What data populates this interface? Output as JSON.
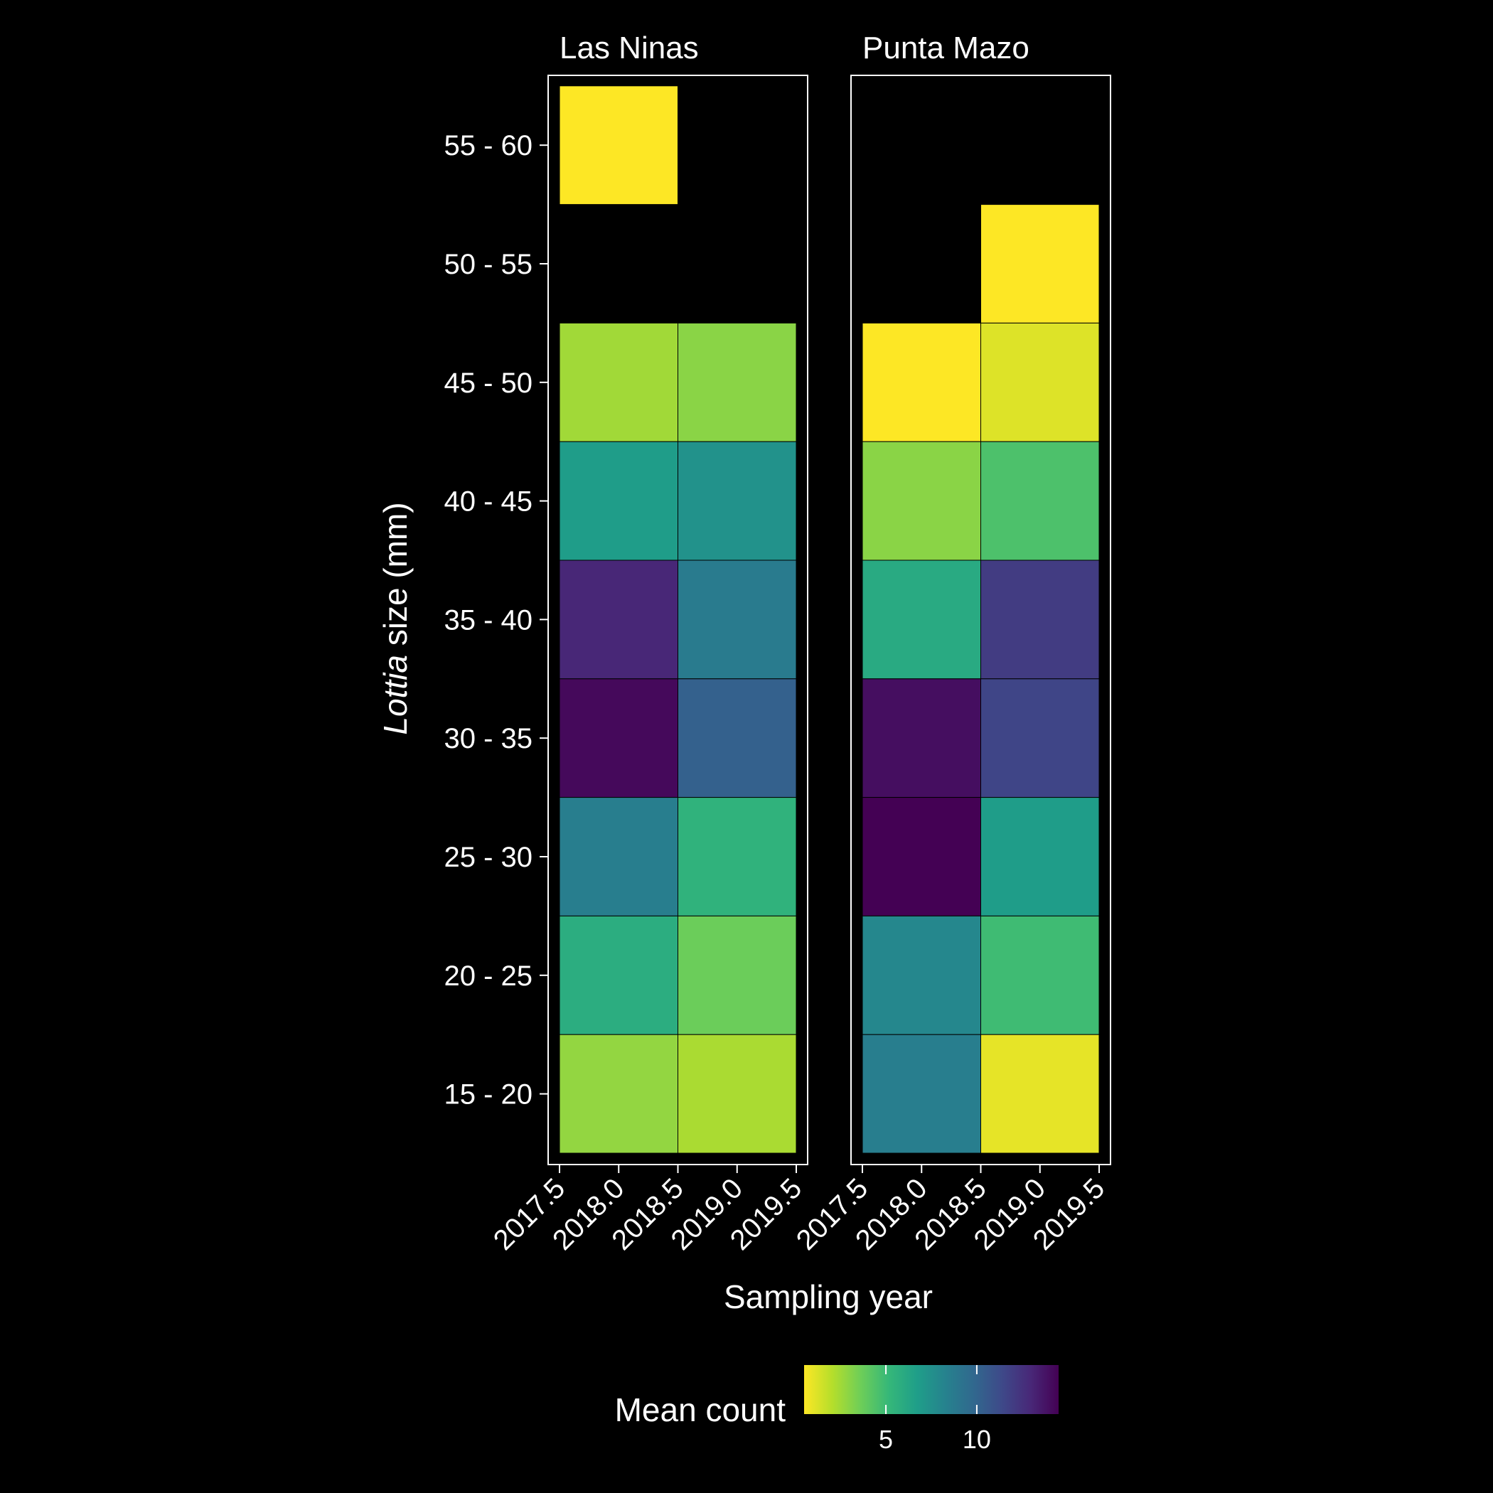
{
  "chart_data": {
    "type": "heatmap",
    "xlabel": "Sampling year",
    "ylabel_italic": "Lottia",
    "ylabel_rest": " size (mm)",
    "x_ticks": [
      "2017.5",
      "2018.0",
      "2018.5",
      "2019.0",
      "2019.5"
    ],
    "x_tick_values": [
      2017.5,
      2018.0,
      2018.5,
      2019.0,
      2019.5
    ],
    "xlim": [
      2017.5,
      2019.5
    ],
    "x_centers": [
      2018,
      2019
    ],
    "y_categories": [
      "15 - 20",
      "20 - 25",
      "25 - 30",
      "30 - 35",
      "35 - 40",
      "40 - 45",
      "45 - 50",
      "50 - 55",
      "55 - 60"
    ],
    "panels": [
      {
        "name": "Las Ninas",
        "cells": [
          {
            "x": 2018,
            "y": "55 - 60",
            "value": 0.5
          },
          {
            "x": 2018,
            "y": "45 - 50",
            "value": 2.5
          },
          {
            "x": 2019,
            "y": "45 - 50",
            "value": 3.0
          },
          {
            "x": 2018,
            "y": "40 - 45",
            "value": 6.8
          },
          {
            "x": 2019,
            "y": "40 - 45",
            "value": 7.4
          },
          {
            "x": 2018,
            "y": "35 - 40",
            "value": 13.0
          },
          {
            "x": 2019,
            "y": "35 - 40",
            "value": 8.7
          },
          {
            "x": 2018,
            "y": "30 - 35",
            "value": 14.2
          },
          {
            "x": 2019,
            "y": "30 - 35",
            "value": 10.2
          },
          {
            "x": 2018,
            "y": "25 - 30",
            "value": 8.5
          },
          {
            "x": 2019,
            "y": "25 - 30",
            "value": 5.5
          },
          {
            "x": 2018,
            "y": "20 - 25",
            "value": 5.8
          },
          {
            "x": 2019,
            "y": "20 - 25",
            "value": 3.7
          },
          {
            "x": 2018,
            "y": "15 - 20",
            "value": 2.8
          },
          {
            "x": 2019,
            "y": "15 - 20",
            "value": 2.3
          }
        ]
      },
      {
        "name": "Punta Mazo",
        "cells": [
          {
            "x": 2019,
            "y": "50 - 55",
            "value": 0.5
          },
          {
            "x": 2018,
            "y": "45 - 50",
            "value": 0.5
          },
          {
            "x": 2019,
            "y": "45 - 50",
            "value": 1.2
          },
          {
            "x": 2018,
            "y": "40 - 45",
            "value": 3.0
          },
          {
            "x": 2019,
            "y": "40 - 45",
            "value": 4.5
          },
          {
            "x": 2018,
            "y": "35 - 40",
            "value": 6.0
          },
          {
            "x": 2019,
            "y": "35 - 40",
            "value": 12.0
          },
          {
            "x": 2018,
            "y": "30 - 35",
            "value": 14.0
          },
          {
            "x": 2019,
            "y": "30 - 35",
            "value": 11.6
          },
          {
            "x": 2018,
            "y": "25 - 30",
            "value": 14.5
          },
          {
            "x": 2019,
            "y": "25 - 30",
            "value": 6.8
          },
          {
            "x": 2018,
            "y": "20 - 25",
            "value": 8.0
          },
          {
            "x": 2019,
            "y": "20 - 25",
            "value": 4.9
          },
          {
            "x": 2018,
            "y": "15 - 20",
            "value": 8.5
          },
          {
            "x": 2019,
            "y": "15 - 20",
            "value": 1.0
          }
        ]
      }
    ],
    "legend": {
      "title": "Mean count",
      "position": "bottom",
      "range": [
        0.5,
        14.5
      ],
      "ticks": [
        "5",
        "10"
      ],
      "tick_values": [
        5,
        10
      ],
      "direction": "reversed-viridis"
    },
    "colors": {
      "background": "#000000",
      "panel_border": "#ffffff",
      "cell_border": "#000000",
      "viridis_stops": [
        "#440154",
        "#482878",
        "#3e4989",
        "#31688e",
        "#26828e",
        "#1f9e89",
        "#35b779",
        "#6ece58",
        "#b5de2b",
        "#fde725"
      ]
    }
  }
}
